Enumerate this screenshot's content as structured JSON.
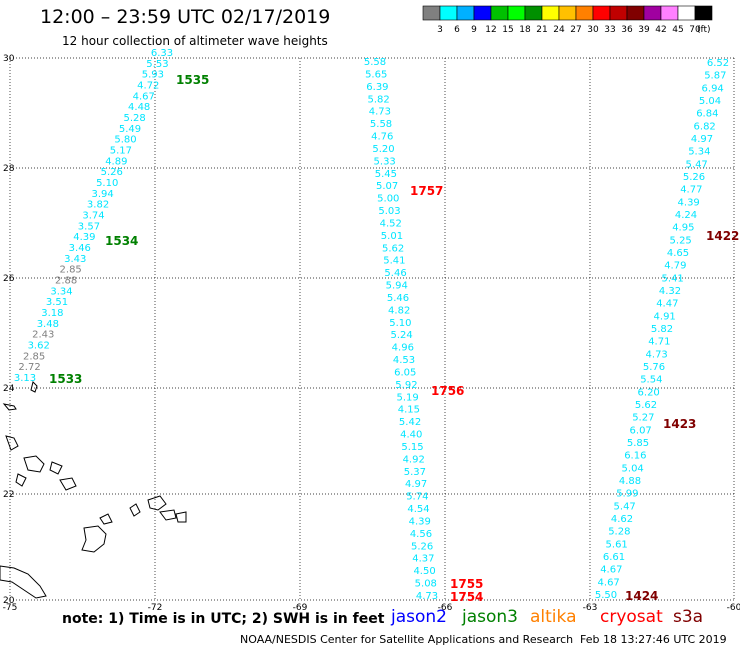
{
  "header": {
    "title": "12:00 – 23:59 UTC 02/17/2019",
    "subtitle": "12 hour collection of altimeter wave heights"
  },
  "legend": {
    "unit": "(ft)",
    "colors": [
      "#808080",
      "#00ffff",
      "#00b0ff",
      "#0000ff",
      "#00c000",
      "#00ff00",
      "#009000",
      "#ffff00",
      "#ffc000",
      "#ff8000",
      "#ff0000",
      "#c00000",
      "#800000",
      "#a000a0",
      "#ff80ff",
      "#ffffff",
      "#000000"
    ],
    "labels": [
      "3",
      "6",
      "9",
      "12",
      "15",
      "18",
      "21",
      "24",
      "27",
      "30",
      "33",
      "36",
      "39",
      "42",
      "45",
      "70"
    ]
  },
  "map": {
    "lon_ticks": [
      "-75",
      "-72",
      "-69",
      "-66",
      "-63",
      "-60"
    ],
    "lat_ticks": [
      "30",
      "28",
      "26",
      "24",
      "22",
      "20"
    ]
  },
  "tracks": [
    {
      "id": "track-1533-1535",
      "points": [
        {
          "v": "3.13",
          "c": "#00e5ff"
        },
        {
          "v": "2.72",
          "c": "#808080"
        },
        {
          "v": "2.85",
          "c": "#808080"
        },
        {
          "v": "3.62",
          "c": "#00e5ff"
        },
        {
          "v": "2.43",
          "c": "#808080"
        },
        {
          "v": "3.48",
          "c": "#00e5ff"
        },
        {
          "v": "3.18",
          "c": "#00e5ff"
        },
        {
          "v": "3.51",
          "c": "#00e5ff"
        },
        {
          "v": "3.34",
          "c": "#00e5ff"
        },
        {
          "v": "2.88",
          "c": "#808080"
        },
        {
          "v": "2.85",
          "c": "#808080"
        },
        {
          "v": "3.43",
          "c": "#00e5ff"
        },
        {
          "v": "3.46",
          "c": "#00e5ff"
        },
        {
          "v": "4.39",
          "c": "#00e5ff"
        },
        {
          "v": "3.57",
          "c": "#00e5ff"
        },
        {
          "v": "3.74",
          "c": "#00e5ff"
        },
        {
          "v": "3.82",
          "c": "#00e5ff"
        },
        {
          "v": "3.94",
          "c": "#00e5ff"
        },
        {
          "v": "5.10",
          "c": "#00e5ff"
        },
        {
          "v": "5.26",
          "c": "#00e5ff"
        },
        {
          "v": "4.89",
          "c": "#00e5ff"
        },
        {
          "v": "5.17",
          "c": "#00e5ff"
        },
        {
          "v": "5.80",
          "c": "#00e5ff"
        },
        {
          "v": "5.49",
          "c": "#00e5ff"
        },
        {
          "v": "5.28",
          "c": "#00e5ff"
        },
        {
          "v": "4.48",
          "c": "#00e5ff"
        },
        {
          "v": "4.67",
          "c": "#00e5ff"
        },
        {
          "v": "4.72",
          "c": "#00e5ff"
        },
        {
          "v": "5.93",
          "c": "#00e5ff"
        },
        {
          "v": "5.53",
          "c": "#00e5ff"
        },
        {
          "v": "6.33",
          "c": "#00e5ff"
        }
      ],
      "times": [
        {
          "label": "1533",
          "color": "#008000"
        },
        {
          "label": "1534",
          "color": "#008000"
        },
        {
          "label": "1535",
          "color": "#008000"
        }
      ]
    },
    {
      "id": "track-1754-1757",
      "points": [
        {
          "v": "4.73",
          "c": "#00e5ff"
        },
        {
          "v": "5.08",
          "c": "#00e5ff"
        },
        {
          "v": "4.50",
          "c": "#00e5ff"
        },
        {
          "v": "4.37",
          "c": "#00e5ff"
        },
        {
          "v": "5.26",
          "c": "#00e5ff"
        },
        {
          "v": "4.56",
          "c": "#00e5ff"
        },
        {
          "v": "4.39",
          "c": "#00e5ff"
        },
        {
          "v": "4.54",
          "c": "#00e5ff"
        },
        {
          "v": "5.74",
          "c": "#00e5ff"
        },
        {
          "v": "4.97",
          "c": "#00e5ff"
        },
        {
          "v": "5.37",
          "c": "#00e5ff"
        },
        {
          "v": "4.92",
          "c": "#00e5ff"
        },
        {
          "v": "5.15",
          "c": "#00e5ff"
        },
        {
          "v": "4.40",
          "c": "#00e5ff"
        },
        {
          "v": "5.42",
          "c": "#00e5ff"
        },
        {
          "v": "4.15",
          "c": "#00e5ff"
        },
        {
          "v": "5.19",
          "c": "#00e5ff"
        },
        {
          "v": "5.92",
          "c": "#00e5ff"
        },
        {
          "v": "6.05",
          "c": "#00e5ff"
        },
        {
          "v": "4.53",
          "c": "#00e5ff"
        },
        {
          "v": "4.96",
          "c": "#00e5ff"
        },
        {
          "v": "5.24",
          "c": "#00e5ff"
        },
        {
          "v": "5.10",
          "c": "#00e5ff"
        },
        {
          "v": "4.82",
          "c": "#00e5ff"
        },
        {
          "v": "5.46",
          "c": "#00e5ff"
        },
        {
          "v": "5.94",
          "c": "#00e5ff"
        },
        {
          "v": "5.46",
          "c": "#00e5ff"
        },
        {
          "v": "5.41",
          "c": "#00e5ff"
        },
        {
          "v": "5.62",
          "c": "#00e5ff"
        },
        {
          "v": "5.01",
          "c": "#00e5ff"
        },
        {
          "v": "4.52",
          "c": "#00e5ff"
        },
        {
          "v": "5.03",
          "c": "#00e5ff"
        },
        {
          "v": "5.00",
          "c": "#00e5ff"
        },
        {
          "v": "5.07",
          "c": "#00e5ff"
        },
        {
          "v": "5.45",
          "c": "#00e5ff"
        },
        {
          "v": "5.33",
          "c": "#00e5ff"
        },
        {
          "v": "5.20",
          "c": "#00e5ff"
        },
        {
          "v": "4.76",
          "c": "#00e5ff"
        },
        {
          "v": "5.58",
          "c": "#00e5ff"
        },
        {
          "v": "4.73",
          "c": "#00e5ff"
        },
        {
          "v": "5.82",
          "c": "#00e5ff"
        },
        {
          "v": "6.39",
          "c": "#00e5ff"
        },
        {
          "v": "5.65",
          "c": "#00e5ff"
        },
        {
          "v": "5.58",
          "c": "#00e5ff"
        }
      ],
      "times": [
        {
          "label": "1754",
          "color": "#ff0000"
        },
        {
          "label": "1755",
          "color": "#ff0000"
        },
        {
          "label": "1756",
          "color": "#ff0000"
        },
        {
          "label": "1757",
          "color": "#ff0000"
        }
      ]
    },
    {
      "id": "track-1422-1424",
      "points": [
        {
          "v": "5.50",
          "c": "#00e5ff"
        },
        {
          "v": "4.67",
          "c": "#00e5ff"
        },
        {
          "v": "4.67",
          "c": "#00e5ff"
        },
        {
          "v": "6.61",
          "c": "#00e5ff"
        },
        {
          "v": "5.61",
          "c": "#00e5ff"
        },
        {
          "v": "5.28",
          "c": "#00e5ff"
        },
        {
          "v": "4.62",
          "c": "#00e5ff"
        },
        {
          "v": "5.47",
          "c": "#00e5ff"
        },
        {
          "v": "5.99",
          "c": "#00e5ff"
        },
        {
          "v": "4.88",
          "c": "#00e5ff"
        },
        {
          "v": "5.04",
          "c": "#00e5ff"
        },
        {
          "v": "6.16",
          "c": "#00e5ff"
        },
        {
          "v": "5.85",
          "c": "#00e5ff"
        },
        {
          "v": "6.07",
          "c": "#00e5ff"
        },
        {
          "v": "5.27",
          "c": "#00e5ff"
        },
        {
          "v": "5.62",
          "c": "#00e5ff"
        },
        {
          "v": "6.20",
          "c": "#00e5ff"
        },
        {
          "v": "5.54",
          "c": "#00e5ff"
        },
        {
          "v": "5.76",
          "c": "#00e5ff"
        },
        {
          "v": "4.73",
          "c": "#00e5ff"
        },
        {
          "v": "4.71",
          "c": "#00e5ff"
        },
        {
          "v": "5.82",
          "c": "#00e5ff"
        },
        {
          "v": "4.91",
          "c": "#00e5ff"
        },
        {
          "v": "4.47",
          "c": "#00e5ff"
        },
        {
          "v": "4.32",
          "c": "#00e5ff"
        },
        {
          "v": "5.41",
          "c": "#00e5ff"
        },
        {
          "v": "4.79",
          "c": "#00e5ff"
        },
        {
          "v": "4.65",
          "c": "#00e5ff"
        },
        {
          "v": "5.25",
          "c": "#00e5ff"
        },
        {
          "v": "4.95",
          "c": "#00e5ff"
        },
        {
          "v": "4.24",
          "c": "#00e5ff"
        },
        {
          "v": "4.39",
          "c": "#00e5ff"
        },
        {
          "v": "4.77",
          "c": "#00e5ff"
        },
        {
          "v": "5.26",
          "c": "#00e5ff"
        },
        {
          "v": "5.47",
          "c": "#00e5ff"
        },
        {
          "v": "5.34",
          "c": "#00e5ff"
        },
        {
          "v": "4.97",
          "c": "#00e5ff"
        },
        {
          "v": "6.82",
          "c": "#00e5ff"
        },
        {
          "v": "6.84",
          "c": "#00e5ff"
        },
        {
          "v": "5.04",
          "c": "#00e5ff"
        },
        {
          "v": "6.94",
          "c": "#00e5ff"
        },
        {
          "v": "5.87",
          "c": "#00e5ff"
        },
        {
          "v": "6.52",
          "c": "#00e5ff"
        }
      ],
      "times": [
        {
          "label": "1424",
          "color": "#800000"
        },
        {
          "label": "1423",
          "color": "#800000"
        },
        {
          "label": "1422",
          "color": "#800000"
        }
      ]
    }
  ],
  "footer": {
    "note": "note: 1) Time is in UTC; 2) SWH is in feet",
    "satellites": [
      {
        "name": "jason2",
        "color": "#0000ff"
      },
      {
        "name": "jason3",
        "color": "#008000"
      },
      {
        "name": "altika",
        "color": "#ff8000"
      },
      {
        "name": "cryosat",
        "color": "#ff0000"
      },
      {
        "name": "s3a",
        "color": "#800000"
      }
    ],
    "credit": "NOAA/NESDIS Center for Satellite Applications and Research",
    "timestamp": "Feb 18 13:27:46 UTC 2019"
  }
}
